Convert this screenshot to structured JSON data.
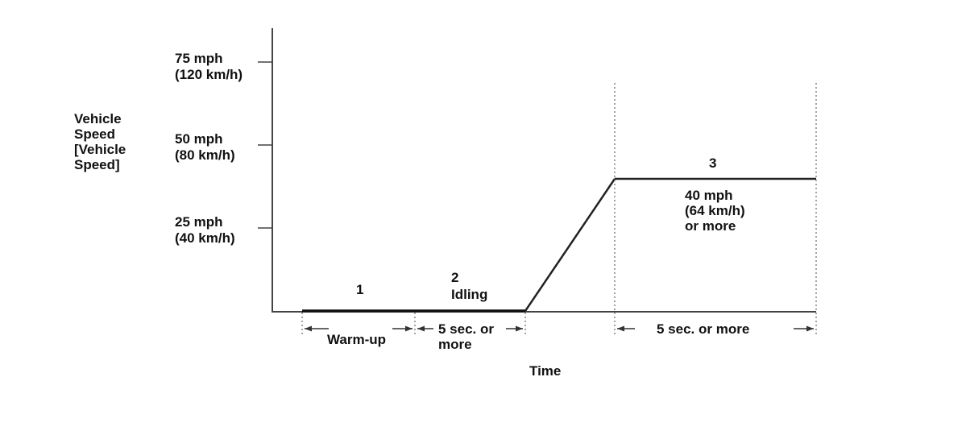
{
  "y_axis": {
    "title": [
      "Vehicle",
      "Speed",
      "[Vehicle",
      "Speed]"
    ],
    "ticks": [
      {
        "mph": "75 mph",
        "kmh": "(120 km/h)"
      },
      {
        "mph": "50 mph",
        "kmh": "(80 km/h)"
      },
      {
        "mph": "25 mph",
        "kmh": "(40 km/h)"
      }
    ]
  },
  "x_axis": {
    "title": "Time"
  },
  "phases": [
    {
      "number": "1",
      "name": "",
      "span_label": [
        "Warm-up"
      ]
    },
    {
      "number": "2",
      "name": "Idling",
      "span_label": [
        "5 sec. or",
        "more"
      ]
    },
    {
      "number": "3",
      "condition": [
        "40 mph",
        "(64 km/h)",
        "or more"
      ],
      "span_label": [
        "5 sec. or more"
      ]
    }
  ]
}
